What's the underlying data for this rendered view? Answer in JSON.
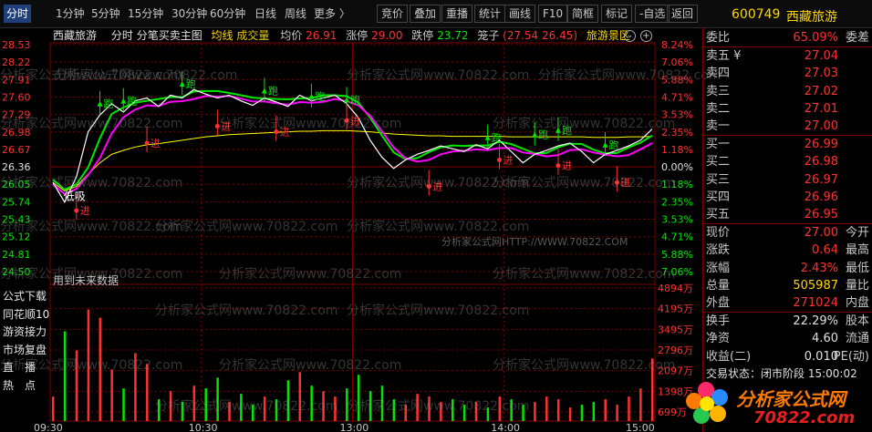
{
  "toolbar": {
    "tabs": [
      "分时",
      "1分钟",
      "5分钟",
      "15分钟",
      "30分钟",
      "60分钟",
      "日线",
      "周线",
      "更多 〉"
    ],
    "actions": [
      "竞价",
      "叠加",
      "重播",
      "统计",
      "画线",
      "F10",
      "简框",
      "标记",
      "-自选",
      "返回"
    ]
  },
  "stock": {
    "code": "600749",
    "name": "西藏旅游"
  },
  "chart_header": {
    "name": "西藏旅游",
    "mode": "分时",
    "indicator": "分笔买卖主图",
    "avg_line_label": "均线",
    "volume_label": "成交量",
    "avg_price_label": "均价",
    "avg_price": "26.91",
    "limit_up_label": "涨停",
    "limit_up": "29.00",
    "limit_down_label": "跌停",
    "limit_down": "23.72",
    "basket_label": "笼子",
    "basket_values": "(27.54 26.45)",
    "sector": "旅游景区"
  },
  "chart_data": {
    "type": "line",
    "price_axis": [
      "28.53",
      "28.22",
      "27.91",
      "27.60",
      "27.29",
      "26.98",
      "26.67",
      "26.36",
      "26.05",
      "25.74",
      "25.43",
      "25.12",
      "24.81",
      "24.50"
    ],
    "pct_axis": [
      "8.24%",
      "7.06%",
      "5.88%",
      "4.71%",
      "3.53%",
      "2.35%",
      "1.18%",
      "0.00%",
      "1.18%",
      "2.35%",
      "3.53%",
      "4.71%",
      "5.88%",
      "7.06%"
    ],
    "volume_axis": [
      "4894万",
      "4195万",
      "3495万",
      "2796万",
      "2097万",
      "1398万",
      "699万"
    ],
    "time_axis": [
      "09:30",
      "10:30",
      "13:00",
      "14:00",
      "15:00"
    ],
    "prev_close": 26.36,
    "ylim": [
      24.5,
      28.53
    ],
    "price": [
      26.05,
      25.7,
      26.15,
      26.95,
      27.25,
      27.45,
      27.3,
      27.5,
      27.55,
      27.4,
      27.6,
      27.55,
      27.7,
      27.62,
      27.55,
      27.6,
      27.5,
      27.42,
      27.55,
      27.48,
      27.4,
      27.6,
      27.5,
      27.55,
      27.6,
      27.45,
      27.2,
      26.8,
      26.5,
      26.3,
      26.45,
      26.55,
      26.62,
      26.7,
      26.65,
      26.6,
      26.72,
      26.65,
      26.8,
      26.6,
      26.4,
      26.55,
      26.62,
      26.7,
      26.75,
      26.6,
      26.4,
      26.55,
      26.62,
      26.7,
      26.8,
      27.0
    ],
    "avg": [
      26.05,
      25.9,
      25.98,
      26.2,
      26.4,
      26.55,
      26.62,
      26.68,
      26.72,
      26.74,
      26.77,
      26.8,
      26.83,
      26.86,
      26.88,
      26.9,
      26.91,
      26.92,
      26.93,
      26.94,
      26.95,
      26.96,
      26.96,
      26.97,
      26.97,
      26.97,
      26.96,
      26.95,
      26.93,
      26.91,
      26.9,
      26.89,
      26.88,
      26.88,
      26.87,
      26.87,
      26.87,
      26.87,
      26.87,
      26.86,
      26.86,
      26.86,
      26.86,
      26.86,
      26.86,
      26.86,
      26.85,
      26.85,
      26.85,
      26.86,
      26.86,
      26.87
    ],
    "volume_wan": [
      900,
      3300,
      2600,
      4100,
      3800,
      1900,
      1200,
      2500,
      2100,
      800,
      1100,
      700,
      1300,
      1200,
      1600,
      700,
      1000,
      600,
      900,
      800,
      1500,
      1800,
      1300,
      1100,
      900,
      1200,
      1700,
      1100,
      1300,
      800,
      600,
      1000,
      900,
      700,
      800,
      600,
      700,
      500,
      900,
      800,
      600,
      700,
      900,
      800,
      500,
      600,
      700,
      800,
      600,
      900,
      1200,
      2300
    ],
    "annotations": [
      {
        "label": "进",
        "time_index": 2,
        "price": 25.55
      },
      {
        "label": "跑",
        "time_index": 4,
        "price": 27.45
      },
      {
        "label": "跑",
        "time_index": 6,
        "price": 27.5
      },
      {
        "label": "进",
        "time_index": 8,
        "price": 26.75
      },
      {
        "label": "跑",
        "time_index": 11,
        "price": 27.8
      },
      {
        "label": "进",
        "time_index": 14,
        "price": 27.05
      },
      {
        "label": "跑",
        "time_index": 18,
        "price": 27.68
      },
      {
        "label": "进",
        "time_index": 19,
        "price": 26.95
      },
      {
        "label": "跑",
        "time_index": 22,
        "price": 27.58
      },
      {
        "label": "跑",
        "time_index": 25,
        "price": 27.52
      },
      {
        "label": "进",
        "time_index": 25,
        "price": 27.15
      },
      {
        "label": "进",
        "time_index": 32,
        "price": 25.98
      },
      {
        "label": "跑",
        "time_index": 37,
        "price": 26.85
      },
      {
        "label": "进",
        "time_index": 38,
        "price": 26.45
      },
      {
        "label": "跑",
        "time_index": 41,
        "price": 26.9
      },
      {
        "label": "跑",
        "time_index": 43,
        "price": 26.98
      },
      {
        "label": "进",
        "time_index": 43,
        "price": 26.35
      },
      {
        "label": "跑",
        "time_index": 47,
        "price": 26.72
      },
      {
        "label": "进",
        "time_index": 48,
        "price": 26.05
      },
      {
        "label": "低吸",
        "time_index": 2,
        "price": 25.8
      }
    ],
    "note": "用到未来数据"
  },
  "side_buttons": [
    "公式下载",
    "同花顺10",
    "游资接力",
    "市场复盘",
    "直　播",
    "热　点"
  ],
  "panel": {
    "weibi": {
      "label": "委比",
      "value": "65.09%",
      "label2": "委差"
    },
    "asks": [
      {
        "label": "卖五 ¥",
        "price": "27.04"
      },
      {
        "label": "卖四",
        "price": "27.03"
      },
      {
        "label": "卖三",
        "price": "27.02"
      },
      {
        "label": "卖二",
        "price": "27.01"
      },
      {
        "label": "卖一",
        "price": "27.00"
      }
    ],
    "bids": [
      {
        "label": "买一",
        "price": "26.99"
      },
      {
        "label": "买二",
        "price": "26.98"
      },
      {
        "label": "买三",
        "price": "26.97"
      },
      {
        "label": "买四",
        "price": "26.96"
      },
      {
        "label": "买五",
        "price": "26.95"
      }
    ],
    "quote": [
      {
        "label": "现价",
        "value": "27.00",
        "label2": "今开",
        "color": "red"
      },
      {
        "label": "涨跌",
        "value": "0.64",
        "label2": "最高",
        "color": "red"
      },
      {
        "label": "涨幅",
        "value": "2.43%",
        "label2": "最低",
        "color": "red"
      },
      {
        "label": "总量",
        "value": "505987",
        "label2": "量比",
        "color": "yellow"
      },
      {
        "label": "外盘",
        "value": "271024",
        "label2": "内盘",
        "color": "red"
      }
    ],
    "stats": [
      {
        "label": "换手",
        "value": "22.29%",
        "label2": "股本",
        "color": "white"
      },
      {
        "label": "净资",
        "value": "4.60",
        "label2": "流通",
        "color": "white"
      },
      {
        "label": "收益(二)",
        "value": "0.010",
        "label2": "PE(动)",
        "color": "white"
      }
    ],
    "trade_status": "交易状态：闭市阶段 15:00:02"
  },
  "watermark": {
    "text": "分析家公式网www.70822.com",
    "center_text": "分析家公式网HTTP://WWW.70822.COM",
    "logo_text": "分析家公式网",
    "logo_url": "70822.com"
  },
  "colors": {
    "up": "#ff3030",
    "down": "#00e600",
    "price_line": "#ffffff",
    "avg_line": "#ffff00",
    "ma_green": "#00e600",
    "ma_magenta": "#ff00ff",
    "grid": "#7a0000"
  }
}
